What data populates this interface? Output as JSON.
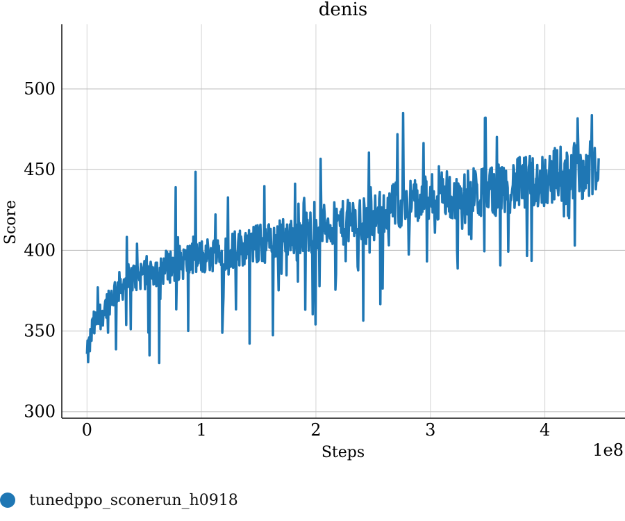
{
  "chart_data": {
    "type": "line",
    "title": "denis",
    "xlabel": "Steps",
    "ylabel": "Score",
    "x_multiplier_label": "1e8",
    "xlim": [
      -0.22,
      4.7
    ],
    "ylim": [
      296,
      540
    ],
    "xticks": [
      0,
      1,
      2,
      3,
      4
    ],
    "xtick_labels": [
      "0",
      "1",
      "2",
      "3",
      "4"
    ],
    "yticks": [
      300,
      350,
      400,
      450,
      500
    ],
    "ytick_labels": [
      "300",
      "350",
      "400",
      "450",
      "500"
    ],
    "grid": true,
    "legend_position": "bottom-left",
    "series": [
      {
        "name": "tunedppo_sconerun_h0918",
        "color": "#1f77b4",
        "x": [
          0.0,
          0.05,
          0.1,
          0.15,
          0.2,
          0.25,
          0.3,
          0.35,
          0.4,
          0.45,
          0.5,
          0.55,
          0.6,
          0.7,
          0.8,
          0.9,
          1.0,
          1.1,
          1.2,
          1.3,
          1.4,
          1.5,
          1.6,
          1.7,
          1.8,
          1.9,
          2.0,
          2.1,
          2.2,
          2.3,
          2.4,
          2.5,
          2.6,
          2.7,
          2.8,
          2.9,
          3.0,
          3.1,
          3.2,
          3.3,
          3.4,
          3.5,
          3.6,
          3.7,
          3.8,
          3.9,
          4.0,
          4.1,
          4.2,
          4.3,
          4.4,
          4.47
        ],
        "values": [
          333,
          352,
          358,
          364,
          370,
          375,
          378,
          381,
          383,
          385,
          386,
          387,
          388,
          390,
          392,
          394,
          396,
          398,
          399,
          401,
          403,
          404,
          405,
          407,
          409,
          411,
          414,
          416,
          416,
          418,
          418,
          420,
          425,
          428,
          430,
          430,
          432,
          432,
          433,
          433,
          434,
          437,
          438,
          440,
          441,
          442,
          444,
          447,
          449,
          450,
          449,
          446
        ]
      }
    ],
    "noise_amplitude": 22
  }
}
